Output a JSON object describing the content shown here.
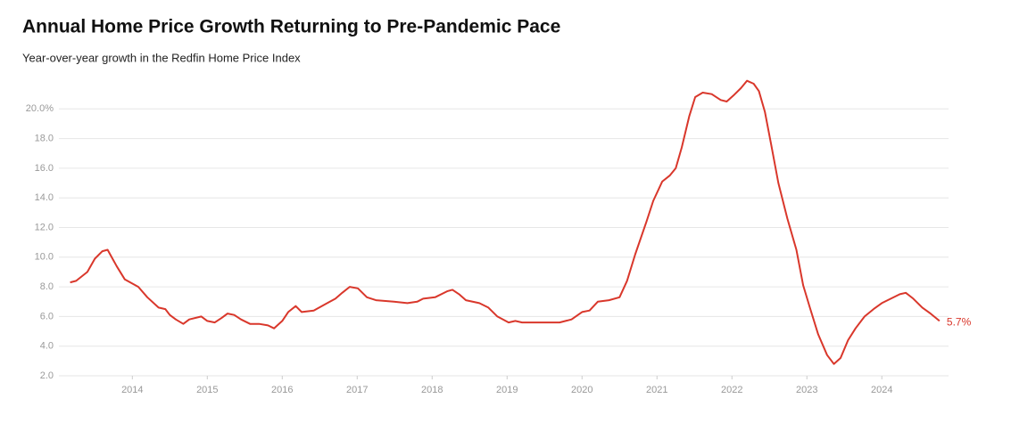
{
  "chart_data": {
    "type": "line",
    "title": "Annual Home Price Growth Returning to Pre-Pandemic Pace",
    "subtitle": "Year-over-year growth in the Redfin Home Price Index",
    "xlim": [
      2013.02,
      2024.89
    ],
    "xticks": [
      2014,
      2015,
      2016,
      2017,
      2018,
      2019,
      2020,
      2021,
      2022,
      2023,
      2024
    ],
    "ylim": [
      2,
      22
    ],
    "yticks": [
      {
        "value": 2,
        "label": "2.0"
      },
      {
        "value": 4,
        "label": "4.0"
      },
      {
        "value": 6,
        "label": "6.0"
      },
      {
        "value": 8,
        "label": "8.0"
      },
      {
        "value": 10,
        "label": "10.0"
      },
      {
        "value": 12,
        "label": "12.0"
      },
      {
        "value": 14,
        "label": "14.0"
      },
      {
        "value": 16,
        "label": "16.0"
      },
      {
        "value": 18,
        "label": "18.0"
      },
      {
        "value": 20,
        "label": "20.0%"
      }
    ],
    "grid": true,
    "series": [
      {
        "color": "#d9372b",
        "x": [
          2013.17,
          2013.25,
          2013.4,
          2013.5,
          2013.6,
          2013.67,
          2013.79,
          2013.9,
          2014.08,
          2014.2,
          2014.35,
          2014.44,
          2014.5,
          2014.58,
          2014.68,
          2014.76,
          2014.92,
          2015.0,
          2015.1,
          2015.19,
          2015.27,
          2015.36,
          2015.45,
          2015.57,
          2015.69,
          2015.81,
          2015.89,
          2016.0,
          2016.08,
          2016.18,
          2016.26,
          2016.42,
          2016.6,
          2016.71,
          2016.8,
          2016.9,
          2017.01,
          2017.13,
          2017.25,
          2017.49,
          2017.67,
          2017.8,
          2017.88,
          2018.04,
          2018.2,
          2018.27,
          2018.36,
          2018.45,
          2018.63,
          2018.75,
          2018.87,
          2019.02,
          2019.11,
          2019.2,
          2019.35,
          2019.52,
          2019.7,
          2019.86,
          2020.0,
          2020.1,
          2020.21,
          2020.36,
          2020.5,
          2020.6,
          2020.71,
          2020.86,
          2020.95,
          2021.07,
          2021.17,
          2021.25,
          2021.33,
          2021.43,
          2021.51,
          2021.61,
          2021.73,
          2021.85,
          2021.93,
          2022.02,
          2022.12,
          2022.2,
          2022.29,
          2022.36,
          2022.44,
          2022.52,
          2022.62,
          2022.74,
          2022.86,
          2022.95,
          2023.04,
          2023.15,
          2023.27,
          2023.36,
          2023.45,
          2023.55,
          2023.65,
          2023.77,
          2023.89,
          2024.0,
          2024.12,
          2024.24,
          2024.32,
          2024.42,
          2024.54,
          2024.65,
          2024.77
        ],
        "values": [
          8.3,
          8.4,
          9.0,
          9.9,
          10.4,
          10.5,
          9.4,
          8.5,
          8.0,
          7.3,
          6.6,
          6.5,
          6.1,
          5.8,
          5.5,
          5.8,
          6.0,
          5.7,
          5.6,
          5.9,
          6.2,
          6.1,
          5.8,
          5.5,
          5.5,
          5.4,
          5.2,
          5.7,
          6.3,
          6.7,
          6.3,
          6.4,
          6.9,
          7.2,
          7.6,
          8.0,
          7.9,
          7.3,
          7.1,
          7.0,
          6.9,
          7.0,
          7.2,
          7.3,
          7.7,
          7.8,
          7.5,
          7.1,
          6.9,
          6.6,
          6.0,
          5.6,
          5.7,
          5.6,
          5.6,
          5.6,
          5.6,
          5.8,
          6.3,
          6.4,
          7.0,
          7.1,
          7.3,
          8.4,
          10.2,
          12.4,
          13.8,
          15.1,
          15.5,
          16.0,
          17.4,
          19.5,
          20.8,
          21.1,
          21.0,
          20.6,
          20.5,
          20.9,
          21.4,
          21.9,
          21.7,
          21.2,
          19.8,
          17.7,
          15.0,
          12.6,
          10.5,
          8.1,
          6.6,
          4.8,
          3.4,
          2.8,
          3.2,
          4.4,
          5.2,
          6.0,
          6.5,
          6.9,
          7.2,
          7.5,
          7.6,
          7.2,
          6.6,
          6.2,
          5.7
        ],
        "value_labels": [
          null,
          null,
          null,
          null,
          null,
          null,
          null,
          null,
          null,
          null,
          null,
          null,
          null,
          null,
          null,
          null,
          null,
          null,
          null,
          null,
          null,
          null,
          null,
          null,
          null,
          null,
          null,
          null,
          null,
          null,
          null,
          null,
          null,
          null,
          null,
          null,
          null,
          null,
          null,
          null,
          null,
          null,
          null,
          null,
          null,
          null,
          null,
          null,
          null,
          null,
          null,
          null,
          null,
          null,
          null,
          null,
          null,
          null,
          null,
          null,
          null,
          null,
          null,
          null,
          null,
          null,
          null,
          null,
          null,
          null,
          null,
          null,
          null,
          null,
          null,
          null,
          null,
          null,
          null,
          null,
          null,
          null,
          null,
          null,
          null,
          null,
          null,
          null,
          null,
          null,
          null,
          null,
          null,
          null,
          null,
          null,
          null,
          null,
          null,
          null,
          null,
          null,
          null,
          null,
          "5.7%"
        ]
      }
    ]
  }
}
